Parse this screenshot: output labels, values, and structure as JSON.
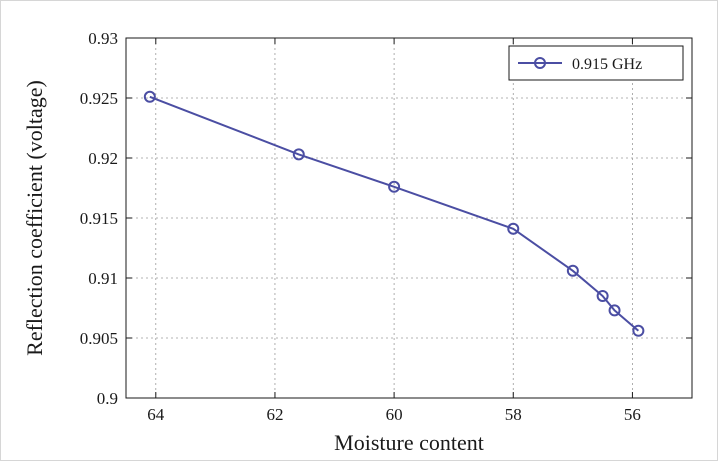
{
  "chart_data": {
    "type": "line",
    "xlabel": "Moisture content",
    "ylabel": "Reflection coefficient (voltage)",
    "x_reversed": true,
    "xlim": [
      64.5,
      55
    ],
    "ylim": [
      0.9,
      0.93
    ],
    "x_ticks": [
      64,
      62,
      60,
      58,
      56
    ],
    "y_ticks": [
      0.9,
      0.905,
      0.91,
      0.915,
      0.92,
      0.925,
      0.93
    ],
    "x_tick_labels": [
      "64",
      "62",
      "60",
      "58",
      "56"
    ],
    "y_tick_labels": [
      "0.9",
      "0.905",
      "0.91",
      "0.915",
      "0.92",
      "0.925",
      "0.93"
    ],
    "grid": true,
    "legend_position": "top-right",
    "series": [
      {
        "name": "0.915 GHz",
        "color": "#4b4ea3",
        "marker": "circle",
        "x": [
          64.1,
          61.6,
          60.0,
          58.0,
          57.0,
          56.5,
          56.3,
          55.9
        ],
        "y": [
          0.9251,
          0.9203,
          0.9176,
          0.9141,
          0.9106,
          0.9085,
          0.9073,
          0.9056
        ]
      }
    ]
  }
}
